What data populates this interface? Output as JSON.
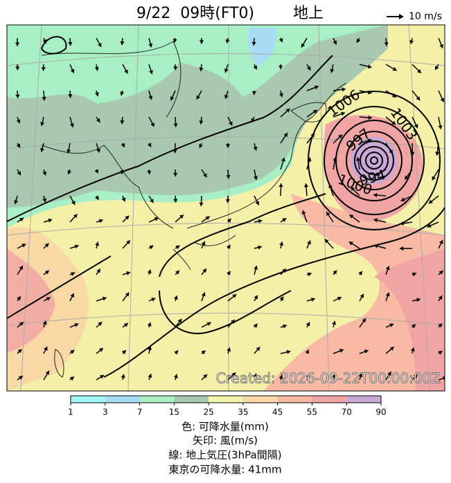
{
  "header": {
    "title": "9/22  09時(FT0)",
    "level": "地上",
    "wind_scale": "10 m/s"
  },
  "map": {
    "contour_labels": [
      "1006",
      "1003",
      "997",
      "994",
      "1000"
    ],
    "stamp": "Created: 2026-09-22T00:00:00Z"
  },
  "colorbar": {
    "ticks": [
      1,
      3,
      7,
      15,
      25,
      35,
      45,
      55,
      70,
      90
    ],
    "colors": [
      "#a0f8f4",
      "#a8dcf4",
      "#a8f0c4",
      "#a8c8b0",
      "#f4f4a8",
      "#f8d8a4",
      "#f8baa4",
      "#f0a4a4",
      "#c8a8d4"
    ]
  },
  "caption": [
    "色: 可降水量(mm)",
    "矢印: 風(m/s)",
    "線: 地上気圧(3hPa間隔)",
    "東京の可降水量: 41mm"
  ]
}
